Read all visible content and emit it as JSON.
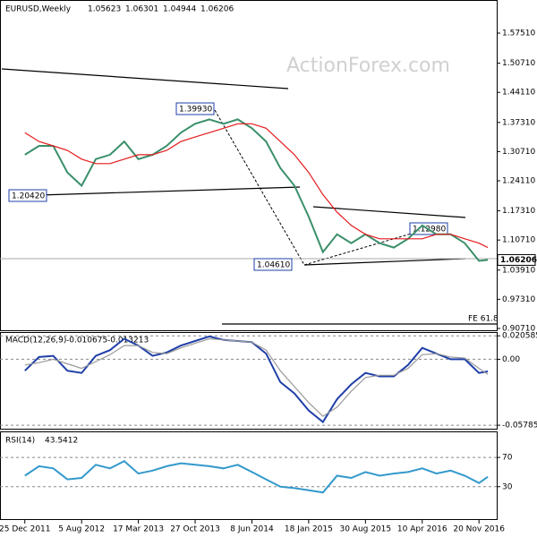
{
  "chart_data": [
    {
      "type": "line",
      "title": "EURUSD,Weekly",
      "ohlc": [
        1.05623,
        1.06301,
        1.04944,
        1.06206
      ],
      "watermark": "ActionForex.com",
      "annotations": [
        "1.39930",
        "1.20420",
        "1.04610",
        "1.12980",
        "FE 61.8"
      ],
      "x": [
        0,
        8,
        16,
        24,
        32,
        40,
        48,
        56,
        64,
        72,
        80,
        88,
        96,
        104,
        112,
        120,
        128,
        136,
        144,
        152,
        160,
        168,
        176,
        184,
        192,
        200,
        208,
        216,
        224,
        232,
        240,
        248,
        256,
        261
      ],
      "xlim": [
        -14,
        266
      ],
      "ylim": [
        0.901,
        1.648
      ],
      "yticks": [
        {
          "value": 1.5751,
          "label": "1.57510"
        },
        {
          "value": 1.5071,
          "label": "1.50710"
        },
        {
          "value": 1.4411,
          "label": "1.44110"
        },
        {
          "value": 1.3731,
          "label": "1.37310"
        },
        {
          "value": 1.3071,
          "label": "1.30710"
        },
        {
          "value": 1.2411,
          "label": "1.24110"
        },
        {
          "value": 1.1731,
          "label": "1.17310"
        },
        {
          "value": 1.1071,
          "label": "1.10710"
        },
        {
          "value": 1.0391,
          "label": "1.03910"
        },
        {
          "value": 0.9731,
          "label": "0.97310"
        },
        {
          "value": 0.9071,
          "label": "0.90710"
        }
      ],
      "grid": false,
      "series": [
        {
          "color": "#3a8f6a",
          "values": [
            1.3,
            1.32,
            1.32,
            1.26,
            1.23,
            1.29,
            1.3,
            1.33,
            1.29,
            1.3,
            1.32,
            1.35,
            1.37,
            1.38,
            1.37,
            1.38,
            1.36,
            1.33,
            1.27,
            1.23,
            1.16,
            1.08,
            1.12,
            1.1,
            1.12,
            1.1,
            1.09,
            1.11,
            1.14,
            1.12,
            1.12,
            1.1,
            1.06,
            1.06206
          ]
        },
        {
          "color": "#e41a1c",
          "values": [
            1.35,
            1.33,
            1.32,
            1.31,
            1.29,
            1.28,
            1.28,
            1.29,
            1.3,
            1.3,
            1.31,
            1.33,
            1.34,
            1.35,
            1.36,
            1.37,
            1.37,
            1.36,
            1.33,
            1.3,
            1.26,
            1.21,
            1.17,
            1.14,
            1.12,
            1.11,
            1.11,
            1.11,
            1.11,
            1.12,
            1.12,
            1.11,
            1.1,
            1.09
          ]
        }
      ]
    },
    {
      "type": "line",
      "title": "MACD(12,26,9)",
      "x": [
        0,
        8,
        16,
        24,
        32,
        40,
        48,
        56,
        64,
        72,
        80,
        88,
        96,
        104,
        112,
        120,
        128,
        136,
        144,
        152,
        160,
        168,
        176,
        184,
        192,
        200,
        208,
        216,
        224,
        232,
        240,
        248,
        256,
        261
      ],
      "xlim": [
        -14,
        266
      ],
      "ylim": [
        -0.0617,
        0.0231
      ],
      "yticks": [
        0.020585,
        {
          "value": 0,
          "label": "0.00"
        },
        -0.057859
      ],
      "grid": true,
      "series": [
        {
          "color": "#1f3fa8",
          "values": [
            -0.01,
            0.002,
            0.003,
            -0.01,
            -0.012,
            0.003,
            0.008,
            0.018,
            0.012,
            0.003,
            0.006,
            0.012,
            0.016,
            0.02,
            0.017,
            0.016,
            0.015,
            0.005,
            -0.02,
            -0.03,
            -0.045,
            -0.055,
            -0.035,
            -0.022,
            -0.012,
            -0.015,
            -0.015,
            -0.005,
            0.01,
            0.005,
            0.0,
            0.0,
            -0.012,
            -0.010675
          ]
        },
        {
          "color": "#9a9a9a",
          "values": [
            -0.005,
            -0.003,
            0.0,
            -0.004,
            -0.008,
            -0.002,
            0.004,
            0.012,
            0.012,
            0.006,
            0.005,
            0.01,
            0.014,
            0.018,
            0.017,
            0.016,
            0.015,
            0.008,
            -0.01,
            -0.024,
            -0.038,
            -0.05,
            -0.042,
            -0.028,
            -0.016,
            -0.014,
            -0.014,
            -0.008,
            0.004,
            0.005,
            0.002,
            0.001,
            -0.008,
            -0.013213
          ]
        }
      ]
    },
    {
      "type": "line",
      "title": "RSI(14)",
      "x": [
        0,
        8,
        16,
        24,
        32,
        40,
        48,
        56,
        64,
        72,
        80,
        88,
        96,
        104,
        112,
        120,
        128,
        136,
        144,
        152,
        160,
        168,
        176,
        184,
        192,
        200,
        208,
        216,
        224,
        232,
        240,
        248,
        256,
        261
      ],
      "xlim": [
        -14,
        266
      ],
      "ylim": [
        -15.6,
        104.4
      ],
      "yticks": [
        70,
        30
      ],
      "grid": true,
      "xticks": [
        {
          "value": 0,
          "label": "25 Dec 2011"
        },
        {
          "value": 32,
          "label": "5 Aug 2012"
        },
        {
          "value": 64,
          "label": "17 Mar 2013"
        },
        {
          "value": 96,
          "label": "27 Oct 2013"
        },
        {
          "value": 128,
          "label": "8 Jun 2014"
        },
        {
          "value": 160,
          "label": "18 Jan 2015"
        },
        {
          "value": 192,
          "label": "30 Aug 2015"
        },
        {
          "value": 224,
          "label": "10 Apr 2016"
        },
        {
          "value": 256,
          "label": "20 Nov 2016"
        }
      ],
      "series": [
        {
          "color": "#3399cc",
          "values": [
            45,
            58,
            55,
            40,
            42,
            60,
            55,
            65,
            48,
            52,
            58,
            62,
            60,
            58,
            55,
            60,
            50,
            40,
            30,
            28,
            25,
            22,
            45,
            42,
            50,
            45,
            48,
            50,
            55,
            48,
            52,
            45,
            35,
            43.5412
          ]
        }
      ]
    }
  ]
}
